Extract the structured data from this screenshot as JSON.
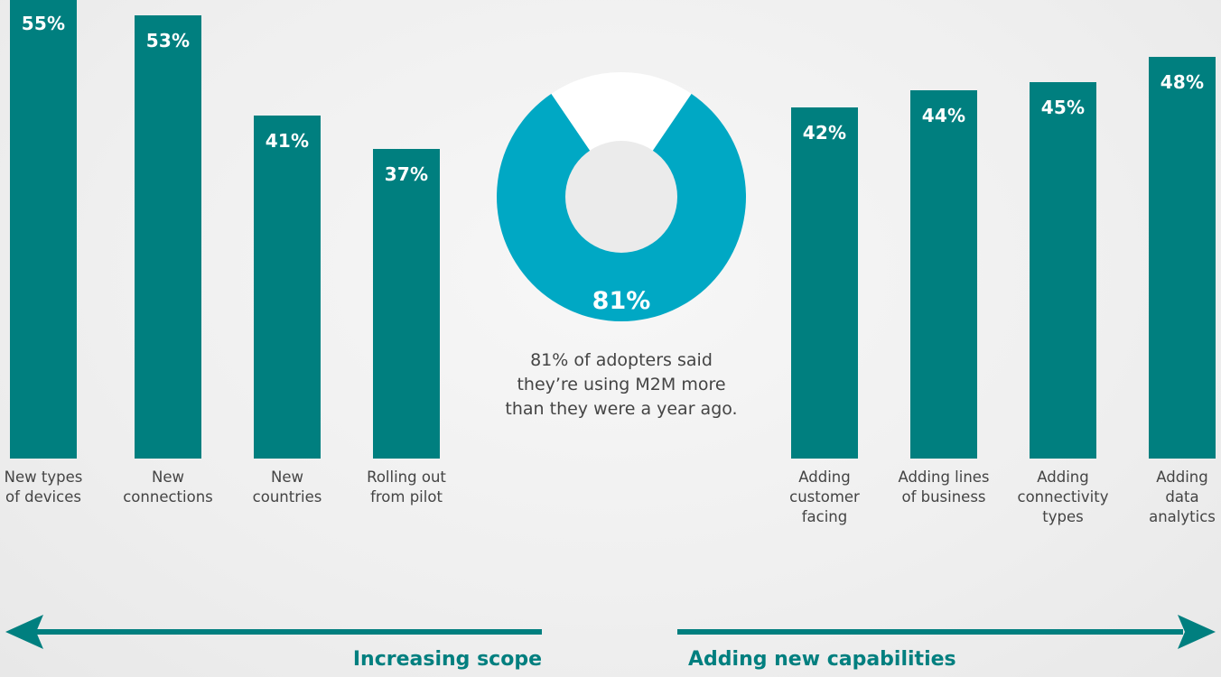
{
  "chart_data": [
    {
      "type": "bar",
      "group": "Increasing scope",
      "categories": [
        "New types\nof devices",
        "New\nconnections",
        "New\ncountries",
        "Rolling out\nfrom pilot"
      ],
      "values": [
        55,
        53,
        41,
        37
      ],
      "value_labels": [
        "55%",
        "53%",
        "41%",
        "37%"
      ],
      "ylim": [
        0,
        60
      ]
    },
    {
      "type": "pie",
      "slices": [
        {
          "name": "",
          "value": 81
        },
        {
          "name": "",
          "value": 19
        }
      ],
      "center_label": "81%",
      "caption": "81% of adopters said\nthey’re using M2M more\nthan they were a year ago."
    },
    {
      "type": "bar",
      "group": "Adding new capabilities",
      "categories": [
        "Adding\ncustomer\nfacing",
        "Adding lines\nof business",
        "Adding\nconnectivity\ntypes",
        "Adding\ndata\nanalytics"
      ],
      "values": [
        42,
        44,
        45,
        48
      ],
      "value_labels": [
        "42%",
        "44%",
        "45%",
        "48%"
      ],
      "ylim": [
        0,
        60
      ]
    }
  ],
  "arrows": {
    "left_label": "Increasing scope",
    "right_label": "Adding new capabilities"
  },
  "colors": {
    "bar": "#007f7f",
    "donut": "#00a8c4",
    "donut_gap": "#ffffff",
    "donut_hole": "#ebebeb",
    "arrow": "#007f7f"
  }
}
